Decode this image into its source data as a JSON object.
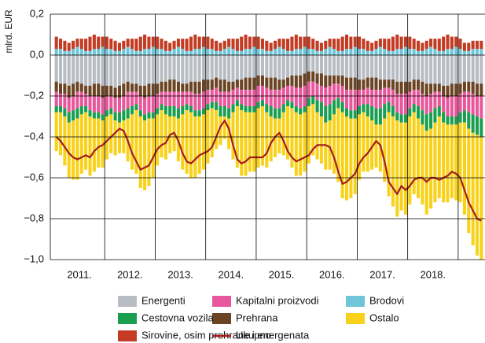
{
  "chart_data": {
    "type": "stacked_bar_line",
    "y_axis_label": "mlrd. EUR",
    "ylim": [
      -1.0,
      0.2
    ],
    "yticks": [
      {
        "value": -1.0,
        "label": "−1,0"
      },
      {
        "value": -0.8,
        "label": "−0,8"
      },
      {
        "value": -0.6,
        "label": "−0,6"
      },
      {
        "value": -0.4,
        "label": "−0,4"
      },
      {
        "value": -0.2,
        "label": "−0,2"
      },
      {
        "value": 0.0,
        "label": "0,0"
      },
      {
        "value": 0.2,
        "label": "0,2"
      }
    ],
    "grid": true,
    "categories": [
      null,
      null,
      null,
      null,
      null,
      "2011.",
      null,
      null,
      null,
      null,
      null,
      null,
      null,
      null,
      null,
      null,
      null,
      "2012.",
      null,
      null,
      null,
      null,
      null,
      null,
      null,
      null,
      null,
      null,
      null,
      "2013.",
      null,
      null,
      null,
      null,
      null,
      null,
      null,
      null,
      null,
      null,
      null,
      "2014.",
      null,
      null,
      null,
      null,
      null,
      null,
      null,
      null,
      null,
      null,
      null,
      "2015.",
      null,
      null,
      null,
      null,
      null,
      null,
      null,
      null,
      null,
      null,
      null,
      "2016.",
      null,
      null,
      null,
      null,
      null,
      null,
      null,
      null,
      null,
      null,
      null,
      "2017.",
      null,
      null,
      null,
      null,
      null,
      null,
      null,
      null,
      null,
      null,
      null,
      "2018.",
      null,
      null,
      null,
      null,
      null,
      null,
      null,
      null,
      null,
      null,
      null,
      null
    ],
    "series": [
      {
        "name": "Brodovi",
        "color": "#6ec6d8",
        "values": [
          0.03,
          0.03,
          0.02,
          0.02,
          0.03,
          0.04,
          0.03,
          0.02,
          0.02,
          0.03,
          0.03,
          0.04,
          0.03,
          0.03,
          0.02,
          0.02,
          0.03,
          0.04,
          0.03,
          0.02,
          0.02,
          0.03,
          0.03,
          0.04,
          0.03,
          0.03,
          0.02,
          0.02,
          0.03,
          0.04,
          0.03,
          0.02,
          0.02,
          0.03,
          0.03,
          0.04,
          0.03,
          0.03,
          0.02,
          0.02,
          0.03,
          0.04,
          0.03,
          0.02,
          0.02,
          0.03,
          0.03,
          0.04,
          0.03,
          0.03,
          0.02,
          0.02,
          0.03,
          0.04,
          0.03,
          0.02,
          0.02,
          0.03,
          0.03,
          0.04,
          0.03,
          0.03,
          0.02,
          0.02,
          0.03,
          0.04,
          0.03,
          0.02,
          0.02,
          0.03,
          0.03,
          0.04,
          0.03,
          0.03,
          0.02,
          0.02,
          0.03,
          0.04,
          0.03,
          0.02,
          0.02,
          0.03,
          0.03,
          0.04,
          0.03,
          0.03,
          0.02,
          0.02,
          0.03,
          0.04,
          0.03,
          0.02,
          0.02,
          0.03,
          0.03,
          0.04,
          0.03,
          0.02,
          0.02,
          0.03,
          0.03,
          0.03
        ]
      },
      {
        "name": "Sirovine, osim prehrane i energenata",
        "color": "#c23b22",
        "values": [
          0.06,
          0.05,
          0.05,
          0.04,
          0.04,
          0.04,
          0.05,
          0.06,
          0.07,
          0.07,
          0.06,
          0.05,
          0.06,
          0.05,
          0.05,
          0.04,
          0.04,
          0.04,
          0.05,
          0.06,
          0.07,
          0.07,
          0.06,
          0.05,
          0.06,
          0.05,
          0.05,
          0.04,
          0.04,
          0.04,
          0.05,
          0.06,
          0.07,
          0.07,
          0.06,
          0.05,
          0.06,
          0.05,
          0.05,
          0.04,
          0.04,
          0.04,
          0.05,
          0.06,
          0.07,
          0.07,
          0.06,
          0.05,
          0.06,
          0.05,
          0.05,
          0.04,
          0.04,
          0.04,
          0.05,
          0.06,
          0.07,
          0.07,
          0.06,
          0.05,
          0.06,
          0.05,
          0.05,
          0.04,
          0.04,
          0.04,
          0.05,
          0.06,
          0.07,
          0.07,
          0.06,
          0.05,
          0.06,
          0.05,
          0.05,
          0.04,
          0.04,
          0.04,
          0.05,
          0.06,
          0.07,
          0.07,
          0.06,
          0.05,
          0.06,
          0.05,
          0.05,
          0.04,
          0.04,
          0.04,
          0.05,
          0.06,
          0.07,
          0.07,
          0.06,
          0.05,
          0.05,
          0.04,
          0.04,
          0.04,
          0.04,
          0.04
        ]
      },
      {
        "name": "Energenti",
        "color": "#b8bdc3",
        "values": [
          -0.13,
          -0.14,
          -0.14,
          -0.15,
          -0.14,
          -0.13,
          -0.14,
          -0.15,
          -0.15,
          -0.14,
          -0.14,
          -0.15,
          -0.15,
          -0.15,
          -0.16,
          -0.15,
          -0.14,
          -0.13,
          -0.14,
          -0.14,
          -0.15,
          -0.15,
          -0.14,
          -0.14,
          -0.14,
          -0.13,
          -0.13,
          -0.12,
          -0.12,
          -0.13,
          -0.14,
          -0.14,
          -0.13,
          -0.13,
          -0.13,
          -0.12,
          -0.12,
          -0.12,
          -0.11,
          -0.12,
          -0.12,
          -0.13,
          -0.13,
          -0.12,
          -0.12,
          -0.11,
          -0.11,
          -0.11,
          -0.1,
          -0.1,
          -0.11,
          -0.11,
          -0.11,
          -0.12,
          -0.12,
          -0.11,
          -0.1,
          -0.1,
          -0.1,
          -0.09,
          -0.08,
          -0.08,
          -0.09,
          -0.09,
          -0.1,
          -0.1,
          -0.1,
          -0.1,
          -0.1,
          -0.11,
          -0.11,
          -0.11,
          -0.12,
          -0.12,
          -0.11,
          -0.11,
          -0.11,
          -0.12,
          -0.12,
          -0.12,
          -0.12,
          -0.13,
          -0.13,
          -0.13,
          -0.13,
          -0.12,
          -0.12,
          -0.13,
          -0.14,
          -0.14,
          -0.14,
          -0.14,
          -0.15,
          -0.15,
          -0.14,
          -0.14,
          -0.14,
          -0.13,
          -0.13,
          -0.13,
          -0.14,
          -0.14
        ]
      },
      {
        "name": "Prehrana",
        "color": "#6b4424",
        "values": [
          -0.05,
          -0.05,
          -0.05,
          -0.06,
          -0.06,
          -0.05,
          -0.04,
          -0.04,
          -0.05,
          -0.06,
          -0.06,
          -0.06,
          -0.05,
          -0.05,
          -0.05,
          -0.06,
          -0.06,
          -0.05,
          -0.04,
          -0.04,
          -0.05,
          -0.06,
          -0.06,
          -0.06,
          -0.05,
          -0.05,
          -0.05,
          -0.06,
          -0.06,
          -0.05,
          -0.04,
          -0.04,
          -0.05,
          -0.06,
          -0.06,
          -0.06,
          -0.05,
          -0.05,
          -0.05,
          -0.06,
          -0.06,
          -0.05,
          -0.04,
          -0.04,
          -0.05,
          -0.06,
          -0.06,
          -0.06,
          -0.05,
          -0.05,
          -0.05,
          -0.06,
          -0.06,
          -0.05,
          -0.04,
          -0.04,
          -0.05,
          -0.06,
          -0.06,
          -0.06,
          -0.05,
          -0.05,
          -0.05,
          -0.06,
          -0.06,
          -0.05,
          -0.04,
          -0.04,
          -0.05,
          -0.06,
          -0.06,
          -0.06,
          -0.05,
          -0.05,
          -0.05,
          -0.06,
          -0.06,
          -0.05,
          -0.04,
          -0.04,
          -0.05,
          -0.06,
          -0.06,
          -0.06,
          -0.05,
          -0.05,
          -0.05,
          -0.06,
          -0.06,
          -0.05,
          -0.04,
          -0.04,
          -0.05,
          -0.06,
          -0.06,
          -0.06,
          -0.05,
          -0.05,
          -0.05,
          -0.06,
          -0.06,
          -0.06
        ]
      },
      {
        "name": "Kapitalni proizvodi",
        "color": "#e8579b",
        "values": [
          -0.07,
          -0.06,
          -0.07,
          -0.07,
          -0.07,
          -0.08,
          -0.07,
          -0.06,
          -0.07,
          -0.08,
          -0.08,
          -0.08,
          -0.07,
          -0.06,
          -0.07,
          -0.07,
          -0.07,
          -0.08,
          -0.07,
          -0.06,
          -0.07,
          -0.08,
          -0.08,
          -0.08,
          -0.07,
          -0.06,
          -0.07,
          -0.07,
          -0.07,
          -0.08,
          -0.07,
          -0.06,
          -0.07,
          -0.08,
          -0.08,
          -0.08,
          -0.07,
          -0.06,
          -0.07,
          -0.07,
          -0.07,
          -0.08,
          -0.07,
          -0.06,
          -0.07,
          -0.08,
          -0.08,
          -0.08,
          -0.08,
          -0.07,
          -0.08,
          -0.08,
          -0.09,
          -0.09,
          -0.08,
          -0.07,
          -0.08,
          -0.09,
          -0.1,
          -0.1,
          -0.08,
          -0.07,
          -0.08,
          -0.08,
          -0.09,
          -0.09,
          -0.08,
          -0.07,
          -0.08,
          -0.09,
          -0.1,
          -0.1,
          -0.08,
          -0.07,
          -0.08,
          -0.08,
          -0.09,
          -0.09,
          -0.08,
          -0.07,
          -0.08,
          -0.09,
          -0.1,
          -0.1,
          -0.08,
          -0.07,
          -0.08,
          -0.08,
          -0.09,
          -0.09,
          -0.08,
          -0.07,
          -0.08,
          -0.09,
          -0.1,
          -0.1,
          -0.09,
          -0.09,
          -0.1,
          -0.1,
          -0.1,
          -0.11
        ]
      },
      {
        "name": "Cestovna vozila",
        "color": "#1a9e50",
        "values": [
          -0.03,
          -0.03,
          -0.04,
          -0.05,
          -0.05,
          -0.05,
          -0.04,
          -0.03,
          -0.03,
          -0.03,
          -0.03,
          -0.03,
          -0.03,
          -0.03,
          -0.04,
          -0.05,
          -0.05,
          -0.05,
          -0.04,
          -0.03,
          -0.03,
          -0.03,
          -0.03,
          -0.03,
          -0.03,
          -0.03,
          -0.04,
          -0.05,
          -0.05,
          -0.05,
          -0.04,
          -0.03,
          -0.03,
          -0.03,
          -0.03,
          -0.03,
          -0.03,
          -0.03,
          -0.04,
          -0.05,
          -0.05,
          -0.05,
          -0.04,
          -0.03,
          -0.03,
          -0.03,
          -0.03,
          -0.03,
          -0.03,
          -0.03,
          -0.04,
          -0.05,
          -0.05,
          -0.05,
          -0.04,
          -0.03,
          -0.03,
          -0.03,
          -0.03,
          -0.03,
          -0.04,
          -0.04,
          -0.06,
          -0.07,
          -0.08,
          -0.08,
          -0.07,
          -0.05,
          -0.05,
          -0.04,
          -0.04,
          -0.04,
          -0.04,
          -0.04,
          -0.06,
          -0.07,
          -0.08,
          -0.08,
          -0.07,
          -0.05,
          -0.05,
          -0.04,
          -0.04,
          -0.04,
          -0.04,
          -0.04,
          -0.06,
          -0.07,
          -0.08,
          -0.08,
          -0.07,
          -0.05,
          -0.05,
          -0.04,
          -0.04,
          -0.04,
          -0.05,
          -0.06,
          -0.08,
          -0.09,
          -0.09,
          -0.09
        ]
      },
      {
        "name": "Ostalo",
        "color": "#f8d21a",
        "values": [
          -0.19,
          -0.21,
          -0.24,
          -0.27,
          -0.29,
          -0.3,
          -0.29,
          -0.28,
          -0.29,
          -0.26,
          -0.24,
          -0.23,
          -0.21,
          -0.19,
          -0.17,
          -0.15,
          -0.16,
          -0.21,
          -0.27,
          -0.31,
          -0.35,
          -0.34,
          -0.33,
          -0.29,
          -0.25,
          -0.23,
          -0.22,
          -0.18,
          -0.17,
          -0.21,
          -0.27,
          -0.31,
          -0.32,
          -0.3,
          -0.28,
          -0.27,
          -0.26,
          -0.24,
          -0.19,
          -0.14,
          -0.11,
          -0.15,
          -0.23,
          -0.3,
          -0.32,
          -0.31,
          -0.29,
          -0.29,
          -0.29,
          -0.29,
          -0.27,
          -0.22,
          -0.19,
          -0.17,
          -0.21,
          -0.26,
          -0.29,
          -0.31,
          -0.3,
          -0.29,
          -0.28,
          -0.25,
          -0.23,
          -0.23,
          -0.23,
          -0.24,
          -0.29,
          -0.36,
          -0.42,
          -0.41,
          -0.39,
          -0.37,
          -0.32,
          -0.29,
          -0.27,
          -0.24,
          -0.21,
          -0.23,
          -0.31,
          -0.41,
          -0.44,
          -0.47,
          -0.43,
          -0.45,
          -0.43,
          -0.4,
          -0.39,
          -0.39,
          -0.41,
          -0.39,
          -0.39,
          -0.4,
          -0.39,
          -0.38,
          -0.36,
          -0.37,
          -0.39,
          -0.45,
          -0.51,
          -0.55,
          -0.59,
          -0.6
        ]
      },
      {
        "name": "Ukupno",
        "color": "#a41c1c",
        "kind": "line",
        "values": [
          -0.4,
          -0.42,
          -0.45,
          -0.48,
          -0.5,
          -0.51,
          -0.5,
          -0.49,
          -0.5,
          -0.47,
          -0.45,
          -0.44,
          -0.42,
          -0.4,
          -0.38,
          -0.36,
          -0.37,
          -0.42,
          -0.48,
          -0.52,
          -0.56,
          -0.55,
          -0.54,
          -0.5,
          -0.46,
          -0.44,
          -0.43,
          -0.39,
          -0.38,
          -0.42,
          -0.48,
          -0.52,
          -0.53,
          -0.51,
          -0.49,
          -0.48,
          -0.47,
          -0.45,
          -0.4,
          -0.35,
          -0.32,
          -0.36,
          -0.44,
          -0.51,
          -0.53,
          -0.52,
          -0.5,
          -0.5,
          -0.5,
          -0.5,
          -0.48,
          -0.43,
          -0.4,
          -0.38,
          -0.42,
          -0.47,
          -0.5,
          -0.52,
          -0.51,
          -0.5,
          -0.49,
          -0.46,
          -0.44,
          -0.44,
          -0.44,
          -0.45,
          -0.5,
          -0.57,
          -0.63,
          -0.62,
          -0.6,
          -0.58,
          -0.53,
          -0.5,
          -0.48,
          -0.45,
          -0.42,
          -0.44,
          -0.52,
          -0.62,
          -0.65,
          -0.68,
          -0.64,
          -0.66,
          -0.64,
          -0.61,
          -0.6,
          -0.6,
          -0.62,
          -0.6,
          -0.6,
          -0.61,
          -0.6,
          -0.59,
          -0.57,
          -0.58,
          -0.6,
          -0.66,
          -0.72,
          -0.76,
          -0.8,
          -0.81
        ]
      }
    ]
  }
}
